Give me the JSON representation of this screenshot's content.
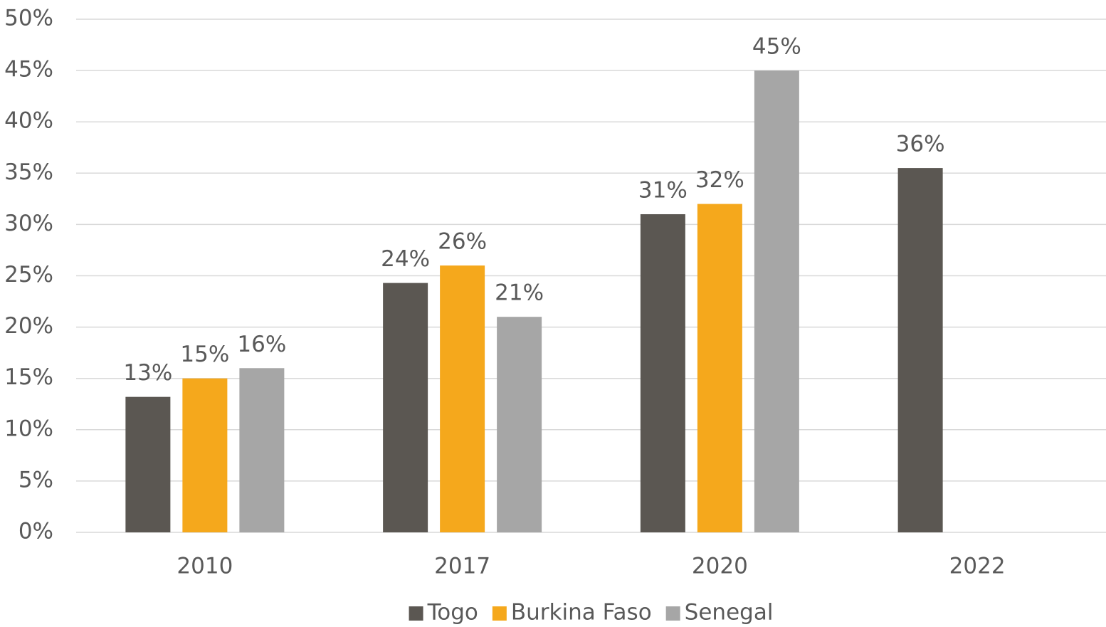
{
  "chart_data": {
    "type": "bar",
    "categories": [
      "2010",
      "2017",
      "2020",
      "2022"
    ],
    "series": [
      {
        "name": "Togo",
        "color": "#5b5752",
        "values": [
          13.2,
          24.3,
          31,
          35.5
        ],
        "value_labels": [
          "13%",
          "24%",
          "31%",
          "36%"
        ]
      },
      {
        "name": "Burkina Faso",
        "color": "#f5a81c",
        "values": [
          15,
          26,
          32,
          null
        ],
        "value_labels": [
          "15%",
          "26%",
          "32%",
          null
        ]
      },
      {
        "name": "Senegal",
        "color": "#a6a6a6",
        "values": [
          16,
          21,
          45,
          null
        ],
        "value_labels": [
          "16%",
          "21%",
          "45%",
          null
        ]
      }
    ],
    "ylim": [
      0,
      50
    ],
    "yticks": [
      {
        "value": 0,
        "label": "0%"
      },
      {
        "value": 5,
        "label": "5%"
      },
      {
        "value": 10,
        "label": "10%"
      },
      {
        "value": 15,
        "label": "15%"
      },
      {
        "value": 20,
        "label": "20%"
      },
      {
        "value": 25,
        "label": "25%"
      },
      {
        "value": 30,
        "label": "30%"
      },
      {
        "value": 35,
        "label": "35%"
      },
      {
        "value": 40,
        "label": "40%"
      },
      {
        "value": 45,
        "label": "45%"
      },
      {
        "value": 50,
        "label": "50%"
      }
    ],
    "grid": true,
    "legend": "bottom"
  }
}
